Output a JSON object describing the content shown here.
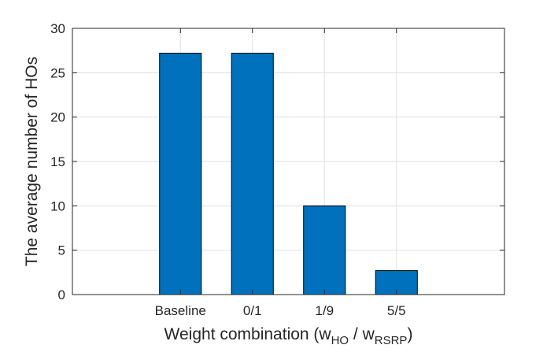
{
  "chart_data": {
    "type": "bar",
    "categories": [
      "Baseline",
      "0/1",
      "1/9",
      "5/5"
    ],
    "values": [
      27.2,
      27.2,
      10.0,
      2.7
    ],
    "ylim": [
      0,
      30
    ],
    "yticks": [
      0,
      5,
      10,
      15,
      20,
      25,
      30
    ],
    "ylabel": "The average number of HOs",
    "xlabel": {
      "prefix": "Weight combination (w",
      "sub1": "HO",
      "mid": " / w",
      "sub2": "RSRP",
      "suffix": ")"
    },
    "grid": true,
    "bar_color": "#0072BD",
    "bar_edge_color": "#000000"
  }
}
